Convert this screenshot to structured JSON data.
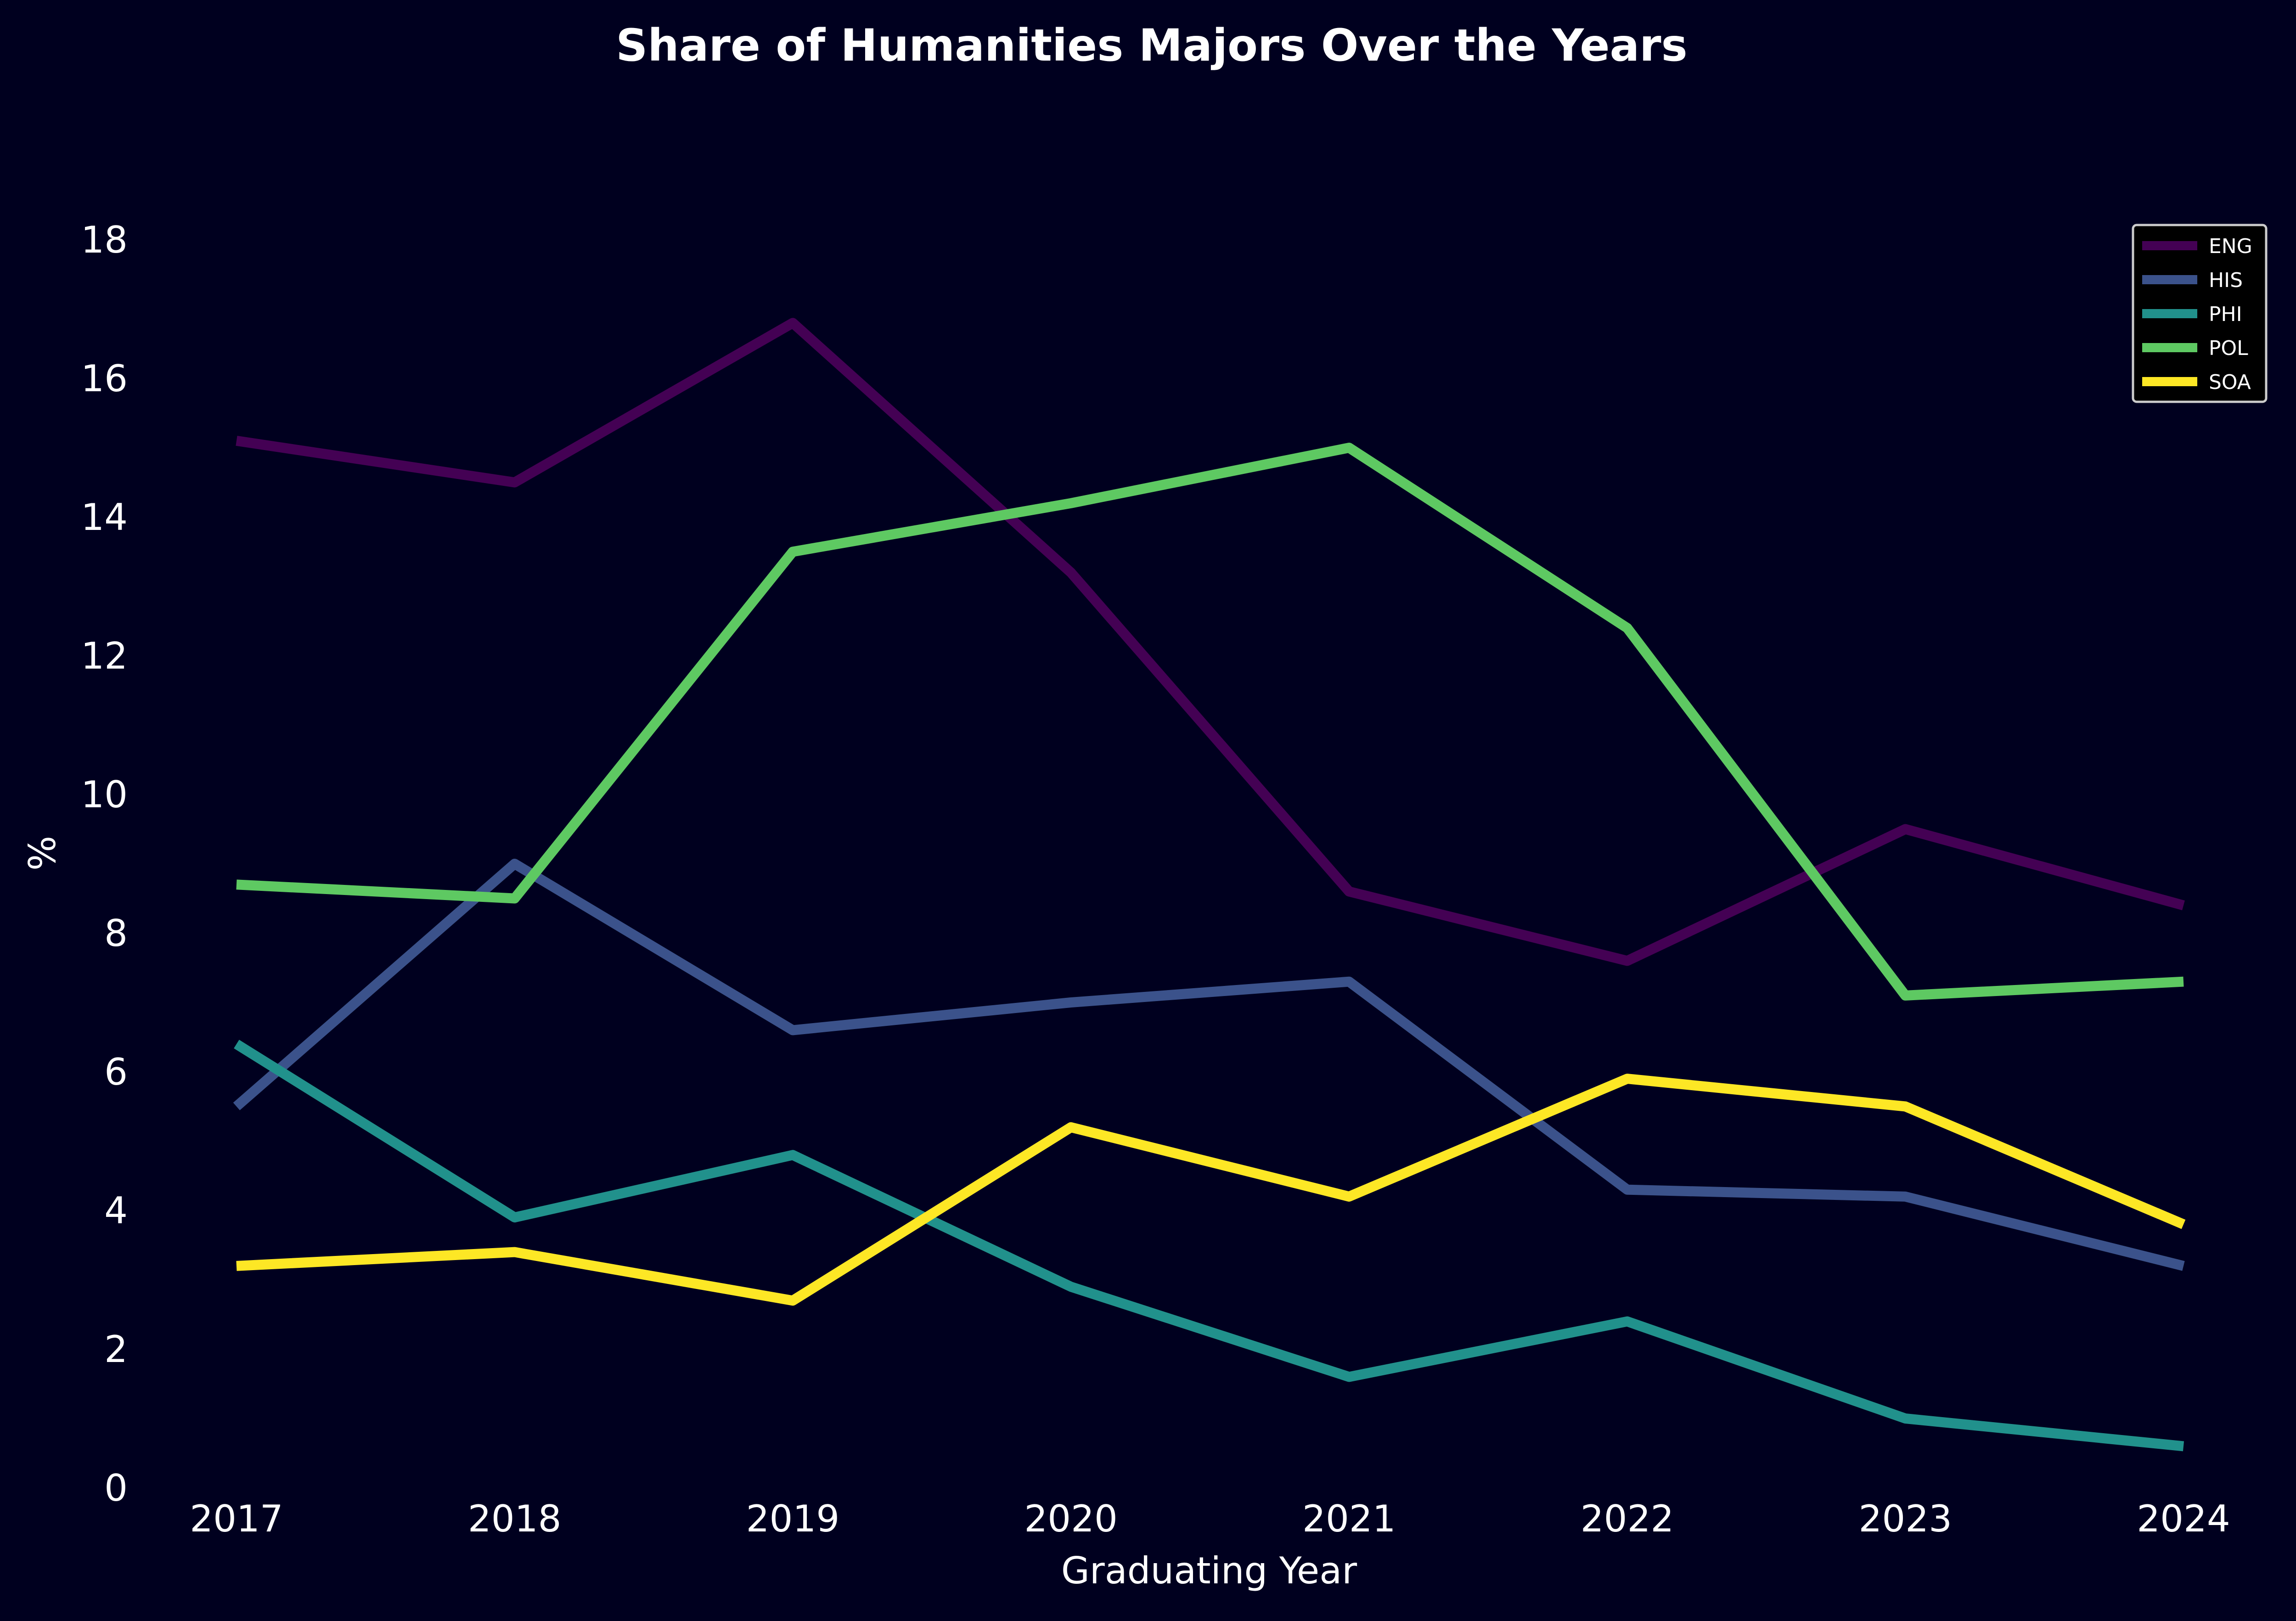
{
  "chart_data": {
    "type": "line",
    "title": "Share of Humanities Majors Over the Years",
    "xlabel": "Graduating Year",
    "ylabel": "%",
    "x": [
      "2017",
      "2018",
      "2019",
      "2020",
      "2021",
      "2022",
      "2023",
      "2024"
    ],
    "ylim": [
      0,
      20
    ],
    "yticks": [
      "0",
      "2",
      "4",
      "6",
      "8",
      "10",
      "12",
      "14",
      "16",
      "18"
    ],
    "grid": false,
    "legend_position": "top-right",
    "background_color": "#00001f",
    "series": [
      {
        "name": "ENG",
        "color": "#440154",
        "values": [
          15.1,
          14.5,
          16.8,
          13.2,
          8.6,
          7.6,
          9.5,
          8.4
        ]
      },
      {
        "name": "HIS",
        "color": "#3b528b",
        "values": [
          5.5,
          9.0,
          6.6,
          7.0,
          7.3,
          4.3,
          4.2,
          3.2
        ]
      },
      {
        "name": "PHI",
        "color": "#21918c",
        "values": [
          6.4,
          3.9,
          4.8,
          2.9,
          1.6,
          2.4,
          1.0,
          0.6
        ]
      },
      {
        "name": "POL",
        "color": "#5ec962",
        "values": [
          8.7,
          8.5,
          13.5,
          14.2,
          15.0,
          12.4,
          7.1,
          7.3
        ]
      },
      {
        "name": "SOA",
        "color": "#fde725",
        "values": [
          3.2,
          3.4,
          2.7,
          5.2,
          4.2,
          5.9,
          5.5,
          3.8
        ]
      }
    ]
  }
}
